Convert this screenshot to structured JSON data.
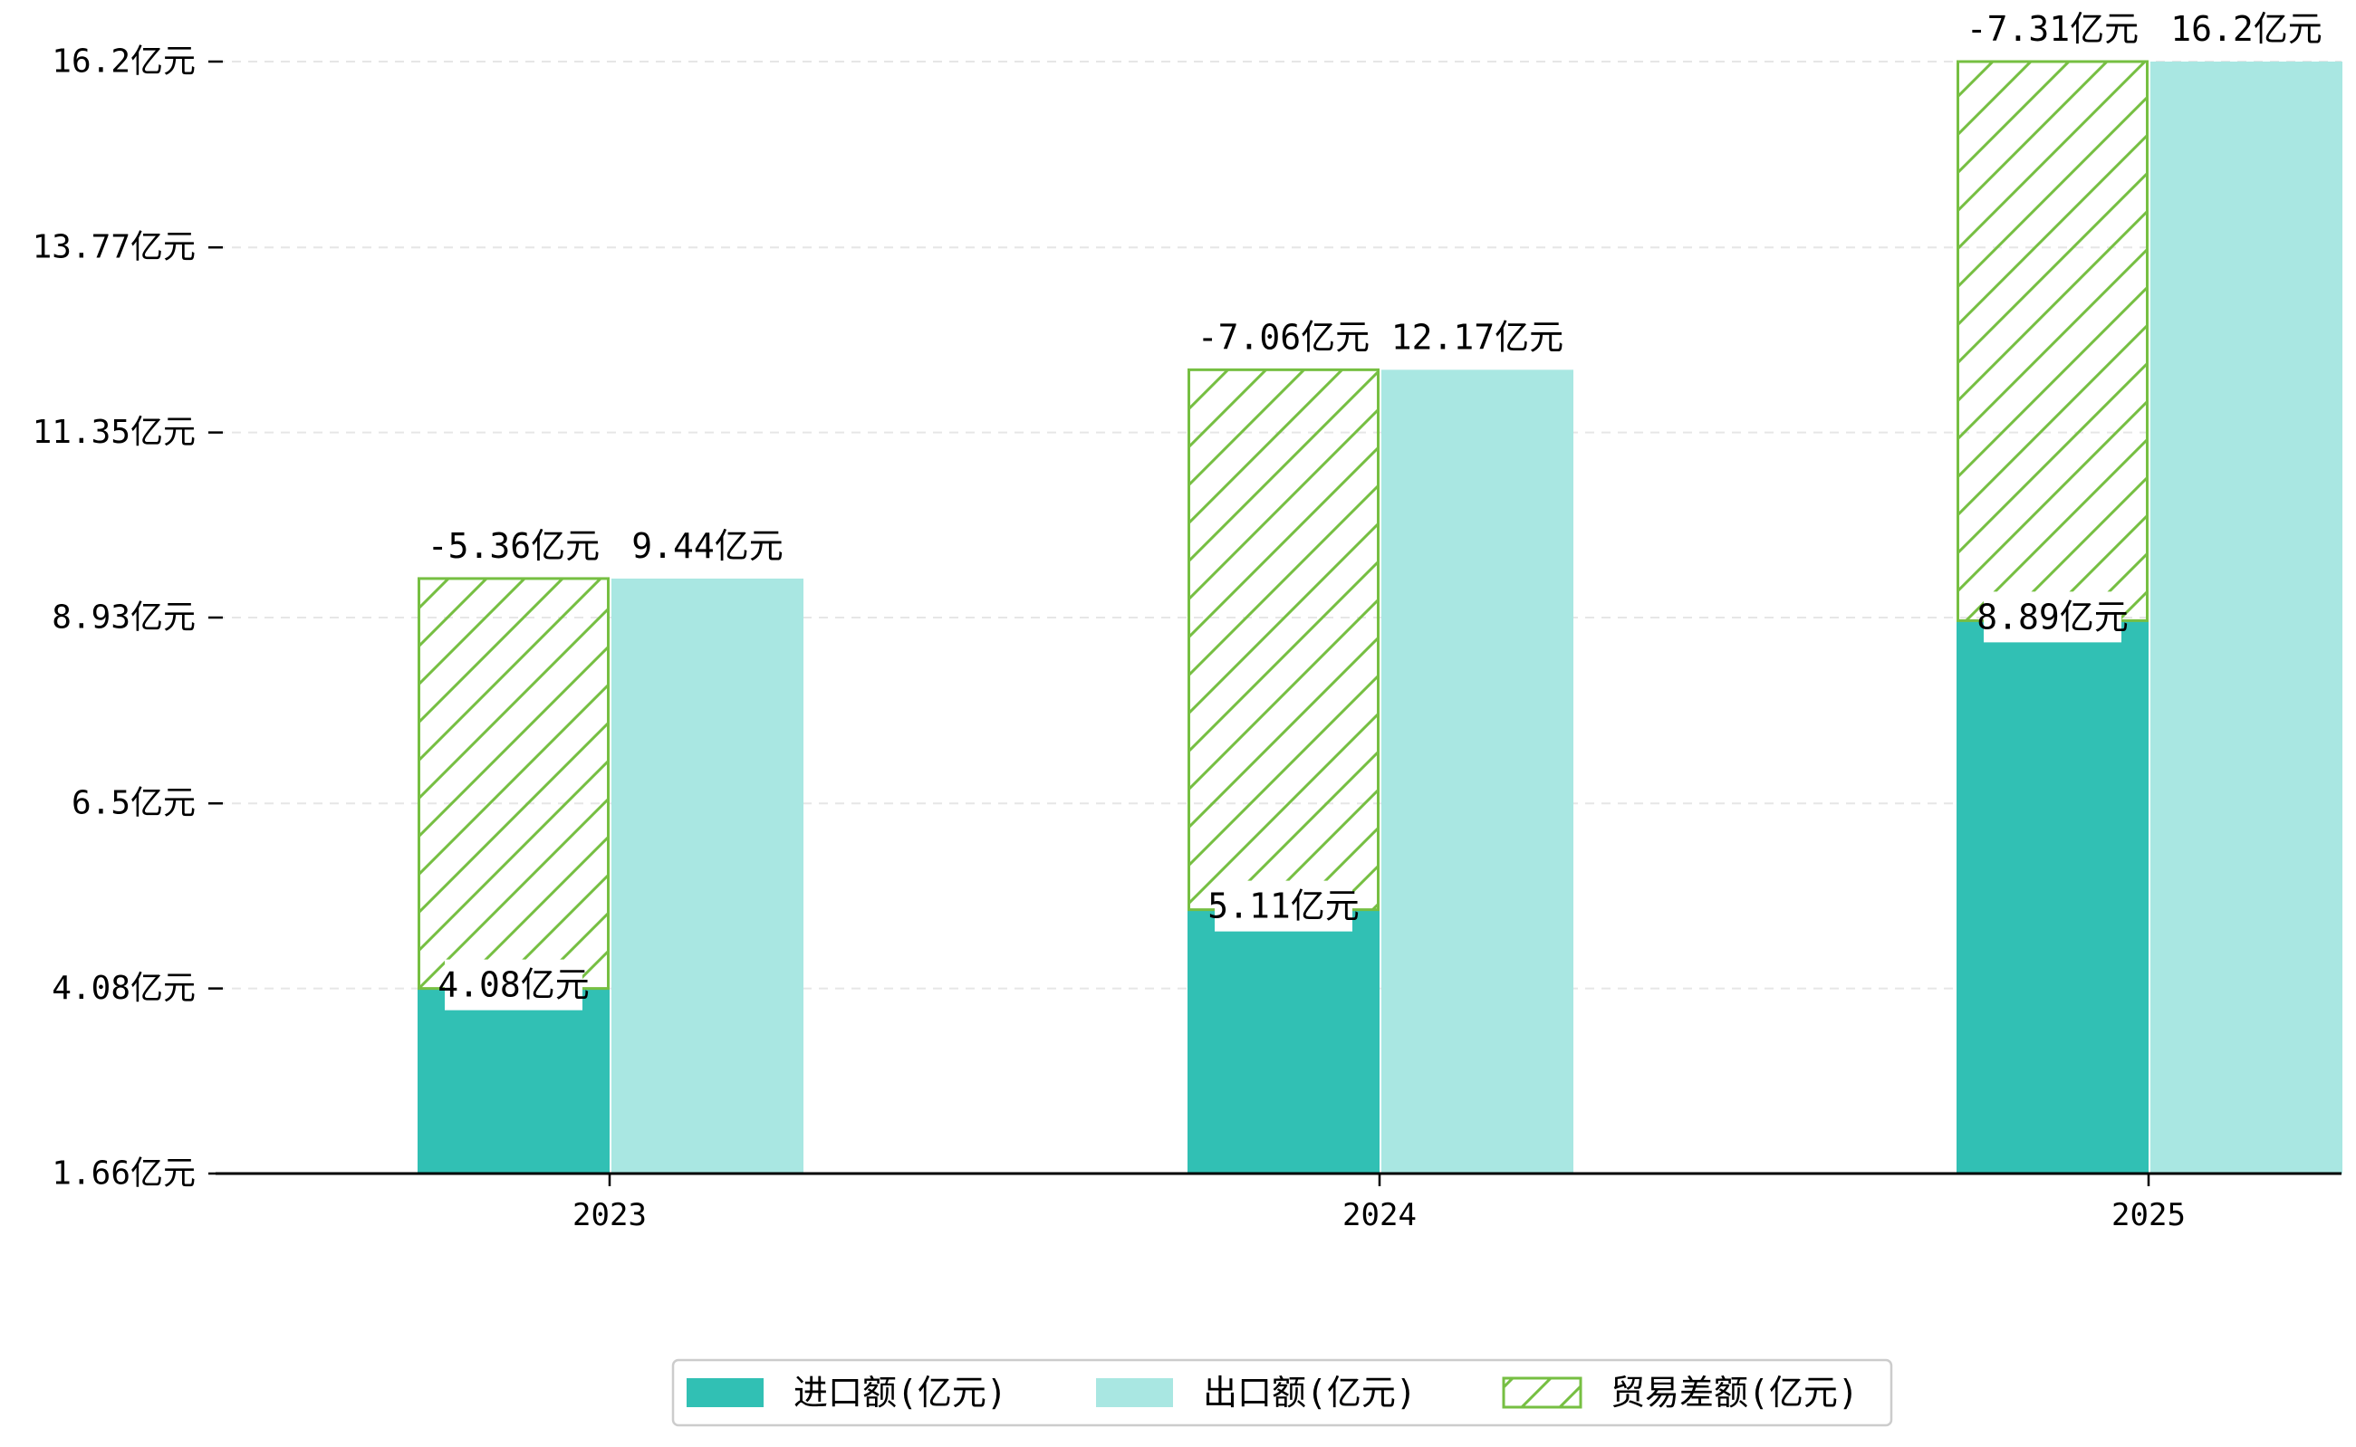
{
  "chart_data": {
    "type": "bar",
    "categories": [
      "2023",
      "2024",
      "2025"
    ],
    "series": [
      {
        "name": "进口额(亿元)",
        "values": [
          4.08,
          5.11,
          8.89
        ],
        "labels": [
          "4.08亿元",
          "5.11亿元",
          "8.89亿元"
        ],
        "color": "#31c0b4",
        "style": "solid"
      },
      {
        "name": "出口额(亿元)",
        "values": [
          9.44,
          12.17,
          16.2
        ],
        "labels": [
          "9.44亿元",
          "12.17亿元",
          "16.2亿元"
        ],
        "color": "#a9e7e2",
        "style": "solid"
      },
      {
        "name": "贸易差额(亿元)",
        "values": [
          -5.36,
          -7.06,
          -7.31
        ],
        "labels": [
          "-5.36亿元",
          "-7.06亿元",
          "-7.31亿元"
        ],
        "color": "#76bf42",
        "style": "hatched",
        "stacked_on": "进口额(亿元)"
      }
    ],
    "y_ticks": [
      1.66,
      4.08,
      6.5,
      8.93,
      11.35,
      13.77,
      16.2
    ],
    "y_tick_labels": [
      "1.66亿元",
      "4.08亿元",
      "6.5亿元",
      "8.93亿元",
      "11.35亿元",
      "13.77亿元",
      "16.2亿元"
    ],
    "ylim": [
      1.66,
      16.2
    ],
    "grid": "horizontal-dashed",
    "legend_position": "bottom-center"
  }
}
